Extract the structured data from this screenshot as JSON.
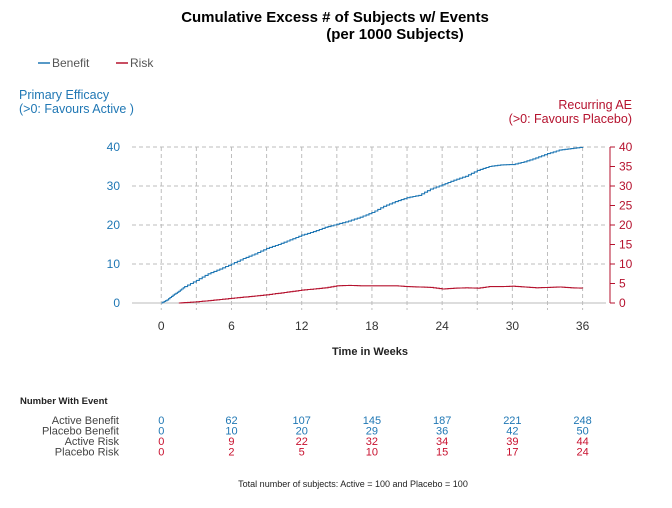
{
  "chart_data": {
    "type": "line",
    "title_line1": "Cumulative Excess # of Subjects w/ Events",
    "title_line2": "(per 1000 Subjects)",
    "xlabel": "Time in Weeks",
    "x_ticks": [
      0,
      6,
      12,
      18,
      24,
      30,
      36
    ],
    "xlim": [
      -2.5,
      38
    ],
    "left_axis": {
      "label_line1": "Primary Efficacy",
      "label_line2": "(>0: Favours Active )",
      "ticks": [
        0,
        10,
        20,
        30,
        40
      ],
      "ylim": [
        0,
        40
      ],
      "color": "#1f77b4"
    },
    "right_axis": {
      "label_line1": "Recurring AE",
      "label_line2": "(>0: Favours  Placebo)",
      "ticks": [
        0,
        5,
        10,
        15,
        20,
        25,
        30,
        35,
        40
      ],
      "ylim": [
        0,
        40
      ],
      "color": "#b5122e"
    },
    "legend": [
      {
        "name": "Benefit",
        "color": "#1f77b4"
      },
      {
        "name": "Risk",
        "color": "#b5122e"
      }
    ],
    "series": [
      {
        "name": "Benefit",
        "axis": "left",
        "color": "#1f77b4",
        "x": [
          0,
          0.5,
          1,
          1.5,
          2,
          3,
          4,
          5,
          6,
          7,
          8,
          9,
          10,
          11,
          12,
          13,
          14,
          15,
          16,
          17,
          18,
          19,
          20,
          21,
          22,
          23,
          24,
          25,
          26,
          27,
          28,
          29,
          30,
          31,
          32,
          33,
          34,
          35,
          36
        ],
        "y": [
          0,
          0.8,
          2.0,
          3.0,
          4.2,
          5.8,
          7.5,
          8.7,
          10.0,
          11.4,
          12.6,
          14.0,
          15.0,
          16.2,
          17.4,
          18.3,
          19.4,
          20.2,
          21.0,
          22.0,
          23.2,
          24.8,
          26.0,
          27.0,
          27.6,
          29.2,
          30.3,
          31.5,
          32.5,
          34.0,
          35.0,
          35.4,
          35.5,
          36.2,
          37.2,
          38.3,
          39.2,
          39.6,
          40.0
        ]
      },
      {
        "name": "Risk",
        "axis": "right",
        "color": "#b5122e",
        "x": [
          1.5,
          2,
          3,
          4,
          5,
          6,
          7,
          8,
          9,
          10,
          11,
          12,
          13,
          14,
          15,
          16,
          17,
          18,
          19,
          20,
          21,
          22,
          23,
          24,
          25,
          26,
          27,
          28,
          29,
          30,
          31,
          32,
          33,
          34,
          35,
          36
        ],
        "y": [
          0,
          0.1,
          0.3,
          0.6,
          0.9,
          1.2,
          1.5,
          1.8,
          2.1,
          2.5,
          2.9,
          3.3,
          3.6,
          3.9,
          4.4,
          4.5,
          4.4,
          4.4,
          4.4,
          4.4,
          4.2,
          4.1,
          4.0,
          3.6,
          3.8,
          3.9,
          3.8,
          4.2,
          4.2,
          4.3,
          4.1,
          3.9,
          4.0,
          4.1,
          3.9,
          3.8
        ]
      }
    ]
  },
  "event_table": {
    "heading": "Number With Event",
    "rows": [
      {
        "label": "Active Benefit",
        "color": "blue",
        "values": [
          "0",
          "62",
          "107",
          "145",
          "187",
          "221",
          "248"
        ]
      },
      {
        "label": "Placebo Benefit",
        "color": "blue",
        "values": [
          "0",
          "10",
          "20",
          "29",
          "36",
          "42",
          "50"
        ]
      },
      {
        "label": "Active Risk",
        "color": "red",
        "values": [
          "0",
          "9",
          "22",
          "32",
          "34",
          "39",
          "44"
        ]
      },
      {
        "label": "Placebo Risk",
        "color": "red",
        "values": [
          "0",
          "2",
          "5",
          "10",
          "15",
          "17",
          "24"
        ]
      }
    ],
    "footnote": "Total number of subjects: Active = 100 and Placebo = 100"
  }
}
